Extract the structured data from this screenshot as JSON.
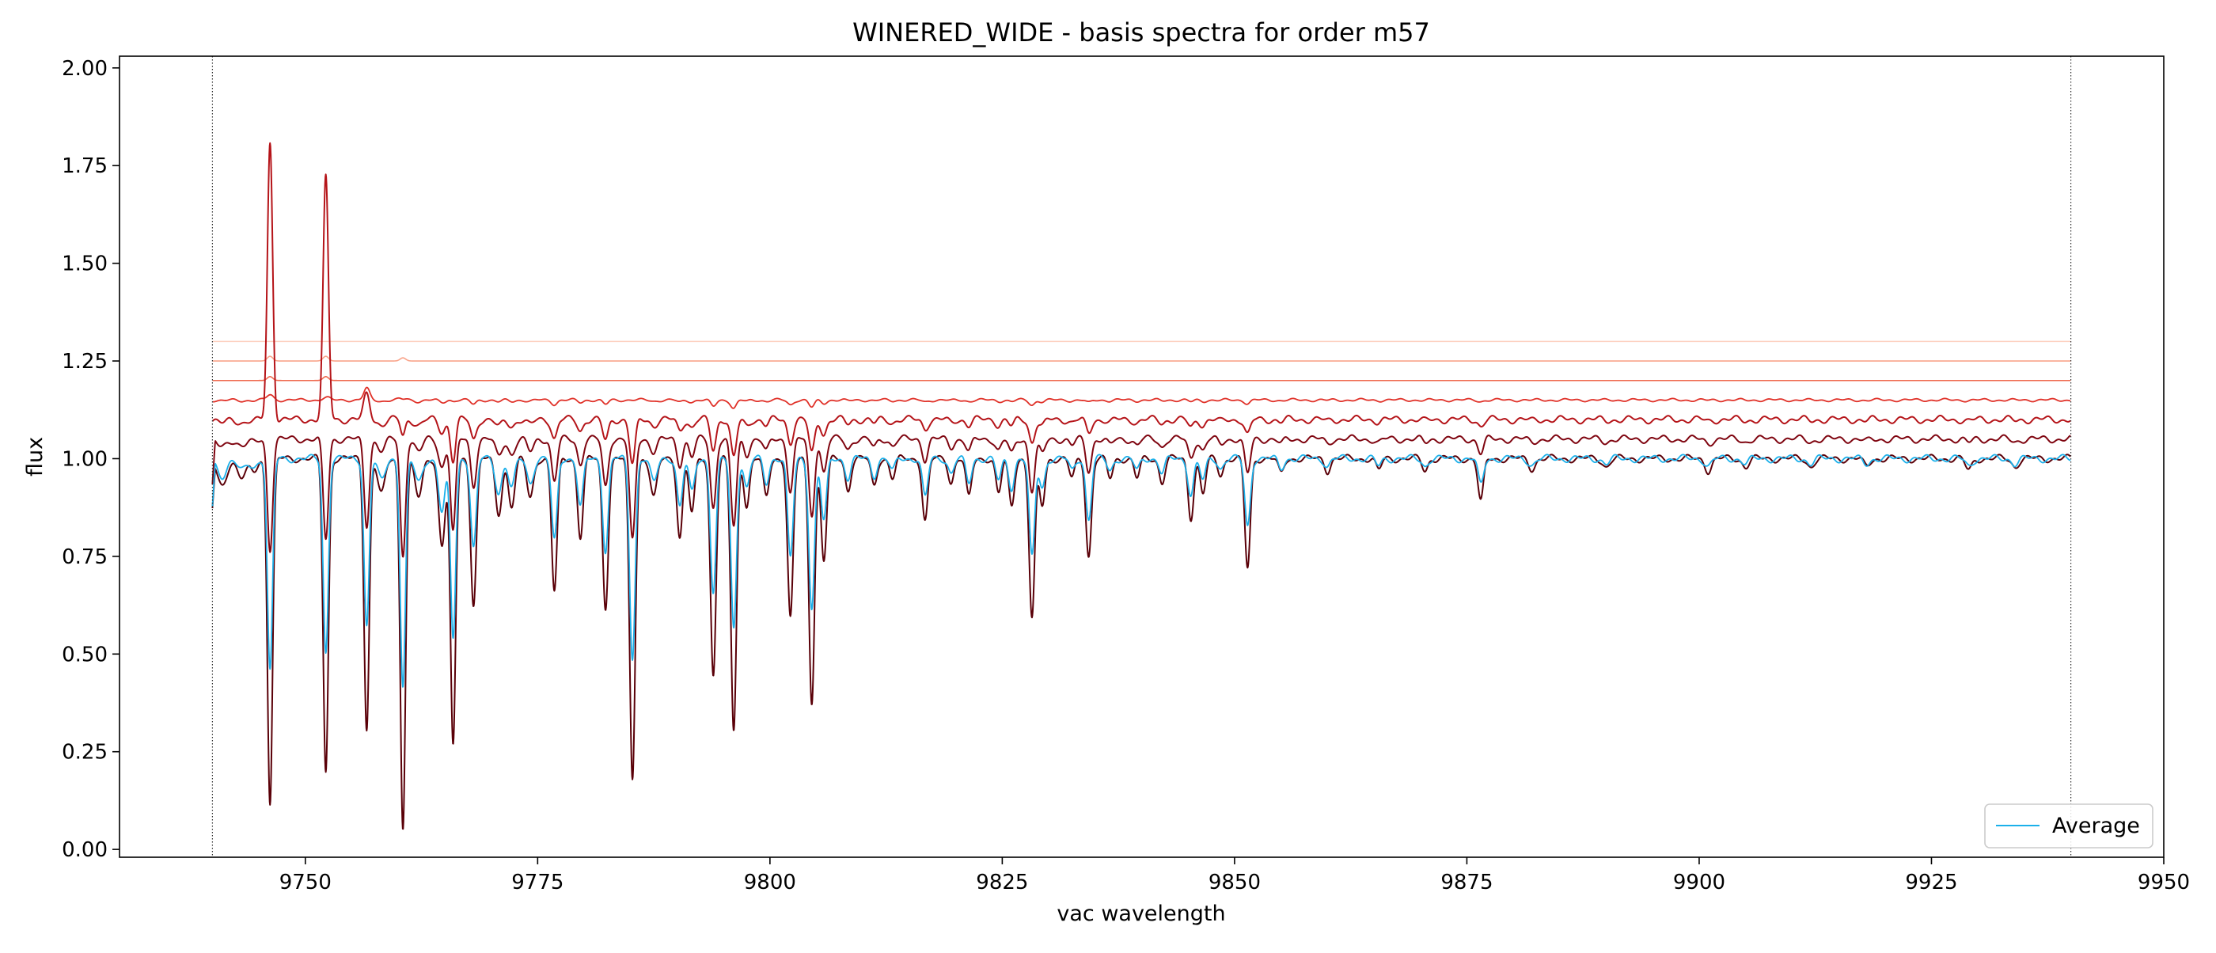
{
  "chart_data": {
    "type": "line",
    "title": "WINERED_WIDE - basis spectra for order m57",
    "xlabel": "vac wavelength",
    "ylabel": "flux",
    "xlim": [
      9730,
      9950
    ],
    "ylim": [
      -0.02,
      2.03
    ],
    "x_ticks": [
      9750,
      9775,
      9800,
      9825,
      9850,
      9875,
      9900,
      9925,
      9950
    ],
    "x_tick_labels": [
      "9750",
      "9775",
      "9800",
      "9825",
      "9850",
      "9875",
      "9900",
      "9925",
      "9950"
    ],
    "y_ticks": [
      0.0,
      0.25,
      0.5,
      0.75,
      1.0,
      1.25,
      1.5,
      1.75,
      2.0
    ],
    "y_tick_labels": [
      "0.00",
      "0.25",
      "0.50",
      "0.75",
      "1.00",
      "1.25",
      "1.50",
      "1.75",
      "2.00"
    ],
    "vlines": [
      9740,
      9940
    ],
    "grid": false,
    "legend_position": "lower right",
    "wavelength_range": [
      9740,
      9940
    ],
    "absorption_lines": [
      [
        9741.0,
        0.07,
        0.5
      ],
      [
        9743.2,
        0.05,
        0.5
      ],
      [
        9744.5,
        0.03,
        0.4
      ],
      [
        9746.2,
        0.88,
        0.28
      ],
      [
        9752.2,
        0.8,
        0.28
      ],
      [
        9756.6,
        0.69,
        0.28
      ],
      [
        9758.2,
        0.09,
        0.4
      ],
      [
        9760.5,
        0.94,
        0.28
      ],
      [
        9762.2,
        0.1,
        0.4
      ],
      [
        9764.7,
        0.22,
        0.35
      ],
      [
        9765.9,
        0.74,
        0.28
      ],
      [
        9768.1,
        0.37,
        0.3
      ],
      [
        9770.8,
        0.14,
        0.35
      ],
      [
        9772.2,
        0.12,
        0.35
      ],
      [
        9774.2,
        0.1,
        0.35
      ],
      [
        9776.8,
        0.34,
        0.3
      ],
      [
        9779.6,
        0.2,
        0.3
      ],
      [
        9782.3,
        0.38,
        0.3
      ],
      [
        9785.2,
        0.82,
        0.3
      ],
      [
        9787.5,
        0.1,
        0.35
      ],
      [
        9790.3,
        0.2,
        0.3
      ],
      [
        9791.6,
        0.14,
        0.3
      ],
      [
        9793.9,
        0.55,
        0.3
      ],
      [
        9796.1,
        0.7,
        0.3
      ],
      [
        9797.5,
        0.12,
        0.3
      ],
      [
        9799.6,
        0.1,
        0.3
      ],
      [
        9802.2,
        0.41,
        0.3
      ],
      [
        9804.5,
        0.62,
        0.3
      ],
      [
        9805.8,
        0.26,
        0.3
      ],
      [
        9808.4,
        0.08,
        0.3
      ],
      [
        9811.2,
        0.07,
        0.3
      ],
      [
        9813.2,
        0.05,
        0.3
      ],
      [
        9816.7,
        0.16,
        0.3
      ],
      [
        9819.5,
        0.06,
        0.3
      ],
      [
        9821.4,
        0.1,
        0.3
      ],
      [
        9824.6,
        0.09,
        0.3
      ],
      [
        9826.0,
        0.12,
        0.3
      ],
      [
        9828.2,
        0.41,
        0.3
      ],
      [
        9829.3,
        0.12,
        0.3
      ],
      [
        9832.5,
        0.05,
        0.3
      ],
      [
        9834.3,
        0.25,
        0.3
      ],
      [
        9836.6,
        0.05,
        0.3
      ],
      [
        9839.5,
        0.05,
        0.3
      ],
      [
        9842.2,
        0.06,
        0.3
      ],
      [
        9845.3,
        0.15,
        0.3
      ],
      [
        9846.6,
        0.09,
        0.3
      ],
      [
        9848.5,
        0.04,
        0.3
      ],
      [
        9851.4,
        0.28,
        0.3
      ],
      [
        9855.0,
        0.04,
        0.3
      ],
      [
        9860.0,
        0.03,
        0.3
      ],
      [
        9865.5,
        0.03,
        0.3
      ],
      [
        9870.5,
        0.03,
        0.3
      ],
      [
        9876.5,
        0.11,
        0.3
      ],
      [
        9882.0,
        0.025,
        0.35
      ],
      [
        9890.0,
        0.02,
        0.35
      ],
      [
        9901.0,
        0.03,
        0.35
      ],
      [
        9905.0,
        0.02,
        0.35
      ],
      [
        9912.0,
        0.02,
        0.35
      ],
      [
        9918.0,
        0.02,
        0.35
      ],
      [
        9929.0,
        0.03,
        0.35
      ],
      [
        9934.0,
        0.02,
        0.35
      ]
    ],
    "series": [
      {
        "color": "#fdd0c0",
        "offset": 1.3,
        "depth_scale": 0.0,
        "width": 1.6,
        "emission": []
      },
      {
        "color": "#f9a48a",
        "offset": 1.25,
        "depth_scale": 0.0,
        "width": 1.6,
        "emission": [
          [
            9746.2,
            0.012,
            0.3
          ],
          [
            9752.2,
            0.012,
            0.3
          ],
          [
            9760.5,
            0.008,
            0.3
          ]
        ]
      },
      {
        "color": "#ef6a4f",
        "offset": 1.2,
        "depth_scale": 0.0,
        "width": 1.6,
        "emission": [
          [
            9746.2,
            0.01,
            0.3
          ],
          [
            9752.2,
            0.01,
            0.3
          ]
        ]
      },
      {
        "color": "#e03128",
        "offset": 1.15,
        "depth_scale": 0.03,
        "width": 1.8,
        "emission": [
          [
            9746.2,
            0.04,
            0.3
          ],
          [
            9752.2,
            0.03,
            0.3
          ],
          [
            9756.6,
            0.05,
            0.3
          ],
          [
            9760.5,
            0.03,
            0.3
          ],
          [
            9765.9,
            0.02,
            0.3
          ],
          [
            9785.2,
            0.025,
            0.3
          ]
        ]
      },
      {
        "color": "#b51419",
        "offset": 1.1,
        "depth_scale": 0.14,
        "width": 2.0,
        "emission": [
          [
            9746.2,
            0.83,
            0.28
          ],
          [
            9752.2,
            0.73,
            0.28
          ],
          [
            9756.6,
            0.16,
            0.3
          ],
          [
            9760.5,
            0.09,
            0.3
          ]
        ]
      },
      {
        "color": "#7f0510",
        "offset": 1.05,
        "depth_scale": 0.32,
        "width": 2.0,
        "emission": []
      },
      {
        "color": "#5a0008",
        "offset": 1.0,
        "depth_scale": 1.0,
        "width": 2.0,
        "emission": []
      },
      {
        "name": "Average",
        "color": "#1bb0ea",
        "offset": 1.0,
        "depth_scale": 0.62,
        "width": 1.8,
        "emission": []
      }
    ]
  }
}
